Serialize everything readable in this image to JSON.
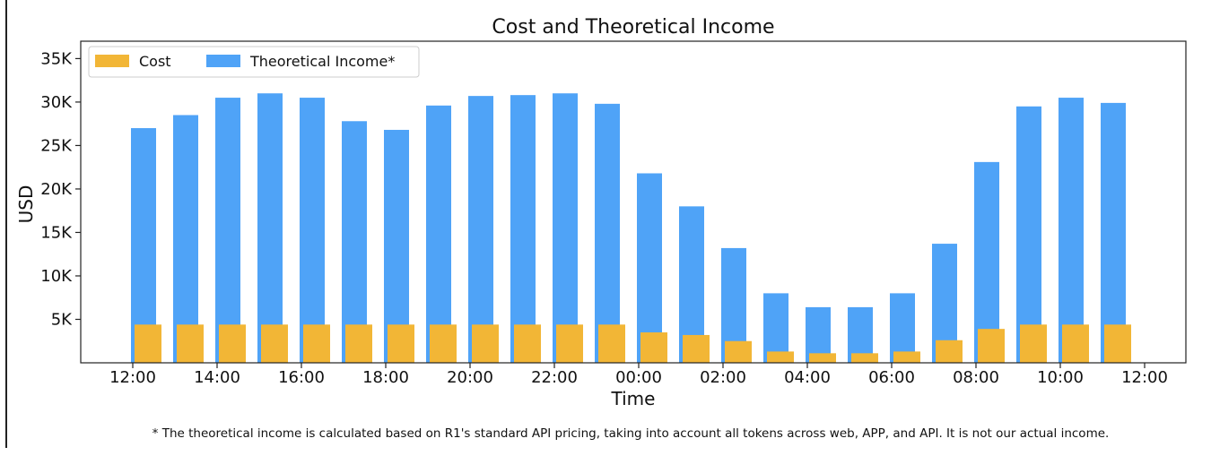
{
  "chart_data": {
    "type": "bar",
    "title": "Cost and Theoretical Income",
    "xlabel": "Time",
    "ylabel": "USD",
    "ylim": [
      0,
      37000
    ],
    "yticks": [
      5000,
      10000,
      15000,
      20000,
      25000,
      30000,
      35000
    ],
    "ytick_labels": [
      "5K",
      "10K",
      "15K",
      "20K",
      "25K",
      "30K",
      "35K"
    ],
    "xtick_labels": [
      "12:00",
      "14:00",
      "16:00",
      "18:00",
      "20:00",
      "22:00",
      "00:00",
      "02:00",
      "04:00",
      "06:00",
      "08:00",
      "10:00",
      "12:00"
    ],
    "categories": [
      "12:00",
      "13:00",
      "14:00",
      "15:00",
      "16:00",
      "17:00",
      "18:00",
      "19:00",
      "20:00",
      "21:00",
      "22:00",
      "23:00",
      "00:00",
      "01:00",
      "02:00",
      "03:00",
      "04:00",
      "05:00",
      "06:00",
      "07:00",
      "08:00",
      "09:00",
      "10:00",
      "11:00"
    ],
    "series": [
      {
        "name": "Cost",
        "color": "#F2B636",
        "values": [
          4400,
          4400,
          4400,
          4400,
          4400,
          4400,
          4400,
          4400,
          4400,
          4400,
          4400,
          4400,
          3500,
          3200,
          2500,
          1300,
          1100,
          1100,
          1300,
          2600,
          3900,
          4400,
          4400,
          4400
        ]
      },
      {
        "name": "Theoretical Income*",
        "color": "#4FA3F7",
        "values": [
          27000,
          28500,
          30500,
          31000,
          30500,
          27800,
          26800,
          29600,
          30700,
          30800,
          31000,
          29800,
          21800,
          18000,
          13200,
          8000,
          6400,
          6400,
          8000,
          13700,
          23100,
          29500,
          30500,
          29900
        ]
      }
    ],
    "legend_position": "top-left",
    "grid": false
  },
  "footnote": "* The theoretical income is calculated based on R1's standard API pricing, taking into account all tokens across web, APP, and API. It is not our actual income."
}
